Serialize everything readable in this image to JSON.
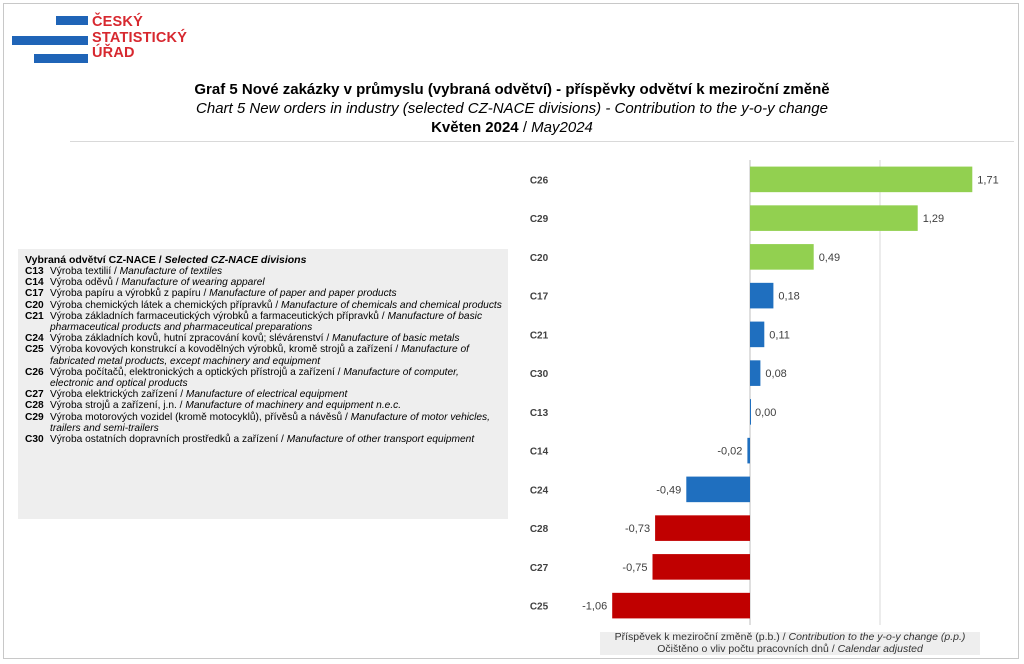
{
  "logo": {
    "line1": "ČESKÝ",
    "line2": "STATISTICKÝ",
    "line3": "ÚŘAD"
  },
  "title": {
    "cz": "Graf 5 Nové zakázky v průmyslu (vybraná odvětví) - příspěvky odvětví k meziroční změně",
    "en": "Chart 5 New orders in industry (selected CZ-NACE divisions) - Contribution to the y-o-y change",
    "period_cz": "Květen 2024",
    "period_sep": " / ",
    "period_en": "May2024"
  },
  "legend": {
    "heading_cz": "Vybraná odvětví CZ-NACE / ",
    "heading_en": "Selected CZ-NACE divisions",
    "items": [
      {
        "code": "C13",
        "cz": "Výroba textilií / ",
        "en": "Manufacture of textiles"
      },
      {
        "code": "C14",
        "cz": "Výroba oděvů / ",
        "en": "Manufacture of wearing apparel"
      },
      {
        "code": "C17",
        "cz": "Výroba papíru a výrobků z papíru / ",
        "en": "Manufacture of paper and paper products"
      },
      {
        "code": "C20",
        "cz": "Výroba chemických látek a chemických přípravků / ",
        "en": "Manufacture of chemicals and chemical products"
      },
      {
        "code": "C21",
        "cz": "Výroba základních farmaceutických výrobků a farmaceutických přípravků / ",
        "en": "Manufacture of basic pharmaceutical products and pharmaceutical preparations"
      },
      {
        "code": "C24",
        "cz": "Výroba základních kovů, hutní zpracování kovů; slévárenství / ",
        "en": "Manufacture of basic metals"
      },
      {
        "code": "C25",
        "cz": "Výroba kovových konstrukcí a kovodělných výrobků, kromě strojů a zařízení / ",
        "en": "Manufacture of fabricated metal products, except machinery and equipment"
      },
      {
        "code": "C26",
        "cz": "Výroba počítačů, elektronických a optických přístrojů a zařízení / ",
        "en": "Manufacture of computer, electronic and optical products"
      },
      {
        "code": "C27",
        "cz": "Výroba elektrických zařízení / ",
        "en": "Manufacture of electrical equipment"
      },
      {
        "code": "C28",
        "cz": "Výroba strojů a zařízení, j.n. / ",
        "en": "Manufacture of machinery and equipment n.e.c."
      },
      {
        "code": "C29",
        "cz": "Výroba motorových vozidel (kromě motocyklů), přívěsů a návěsů / ",
        "en": "Manufacture of motor vehicles, trailers and semi-trailers"
      },
      {
        "code": "C30",
        "cz": "Výroba ostatních dopravních prostředků a zařízení / ",
        "en": "Manufacture of other transport equipment"
      }
    ]
  },
  "footer": {
    "line1_cz": "Příspěvek k meziroční změně (p.b.) / ",
    "line1_en": "Contribution to the y-o-y change (p.p.)",
    "line2_cz": "Očištěno o vliv počtu pracovních dnů / ",
    "line2_en": "Calendar adjusted"
  },
  "chart_data": {
    "type": "bar",
    "orientation": "horizontal",
    "categories": [
      "C26",
      "C29",
      "C20",
      "C17",
      "C21",
      "C30",
      "C13",
      "C14",
      "C24",
      "C28",
      "C27",
      "C25"
    ],
    "values": [
      1.71,
      1.29,
      0.49,
      0.18,
      0.11,
      0.08,
      0.0,
      -0.02,
      -0.49,
      -0.73,
      -0.75,
      -1.06
    ],
    "labels": [
      "1,71",
      "1,29",
      "0,49",
      "0,18",
      "0,11",
      "0,08",
      "0,00",
      "-0,02",
      "-0,49",
      "-0,73",
      "-0,75",
      "-1,06"
    ],
    "colors": [
      "#92d050",
      "#92d050",
      "#92d050",
      "#1f6fbf",
      "#1f6fbf",
      "#1f6fbf",
      "#1f6fbf",
      "#1f6fbf",
      "#1f6fbf",
      "#c00000",
      "#c00000",
      "#c00000"
    ],
    "xlim": [
      -1.5,
      2.0
    ],
    "gridlines": [
      1.0
    ],
    "grid": true,
    "xlabel": "Příspěvek k meziroční změně (p.b.) / Contribution to the y-o-y change (p.p.)",
    "note": "Očištěno o vliv počtu pracovních dnů / Calendar adjusted"
  }
}
